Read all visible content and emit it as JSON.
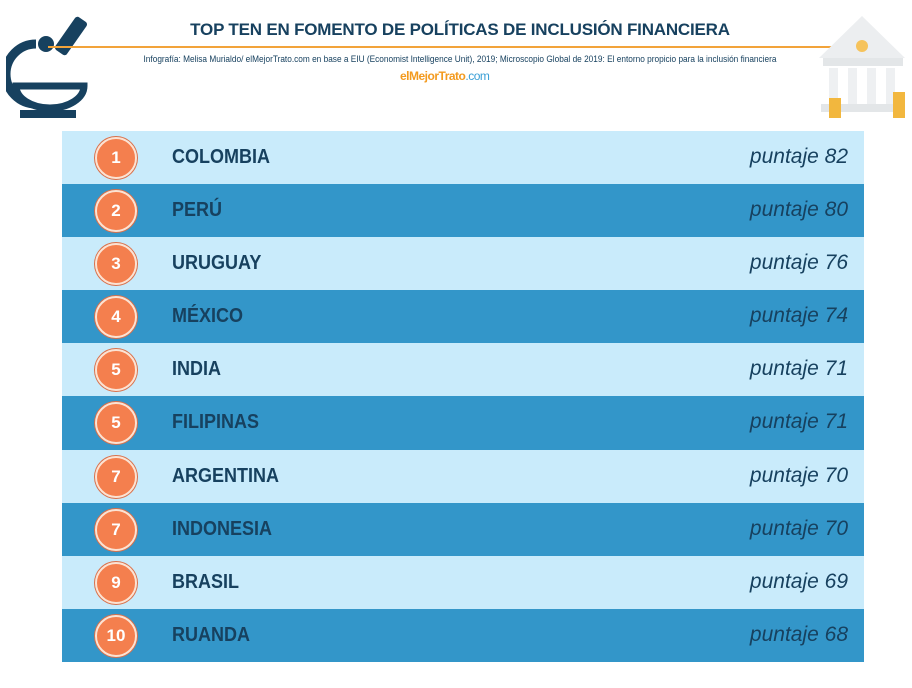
{
  "header": {
    "title": "TOP TEN EN FOMENTO DE POLÍTICAS DE INCLUSIÓN FINANCIERA",
    "credit": "Infografía: Melisa Murialdo/ elMejorTrato.com en base a EIU (Economist Intelligence Unit), 2019; Microscopio Global de 2019: El entorno  propicio para la inclusión financiera",
    "logo": {
      "part1": "el",
      "part2": "MejorTrato",
      "part3": ".com"
    }
  },
  "colors": {
    "light_row": "#c9ebfb",
    "dark_row": "#3396c9",
    "badge": "#f47f4e",
    "text": "#17415f",
    "accent_rule": "#f2a33a"
  },
  "ranking": [
    {
      "rank": "1",
      "country": "COLOMBIA",
      "score": "puntaje 82"
    },
    {
      "rank": "2",
      "country": "PERÚ",
      "score": "puntaje 80"
    },
    {
      "rank": "3",
      "country": "URUGUAY",
      "score": "puntaje 76"
    },
    {
      "rank": "4",
      "country": "MÉXICO",
      "score": "puntaje 74"
    },
    {
      "rank": "5",
      "country": "INDIA",
      "score": "puntaje 71"
    },
    {
      "rank": "5",
      "country": "FILIPINAS",
      "score": "puntaje 71"
    },
    {
      "rank": "7",
      "country": "ARGENTINA",
      "score": "puntaje 70"
    },
    {
      "rank": "7",
      "country": "INDONESIA",
      "score": "puntaje 70"
    },
    {
      "rank": "9",
      "country": "BRASIL",
      "score": "puntaje 69"
    },
    {
      "rank": "10",
      "country": "RUANDA",
      "score": "puntaje 68"
    }
  ]
}
